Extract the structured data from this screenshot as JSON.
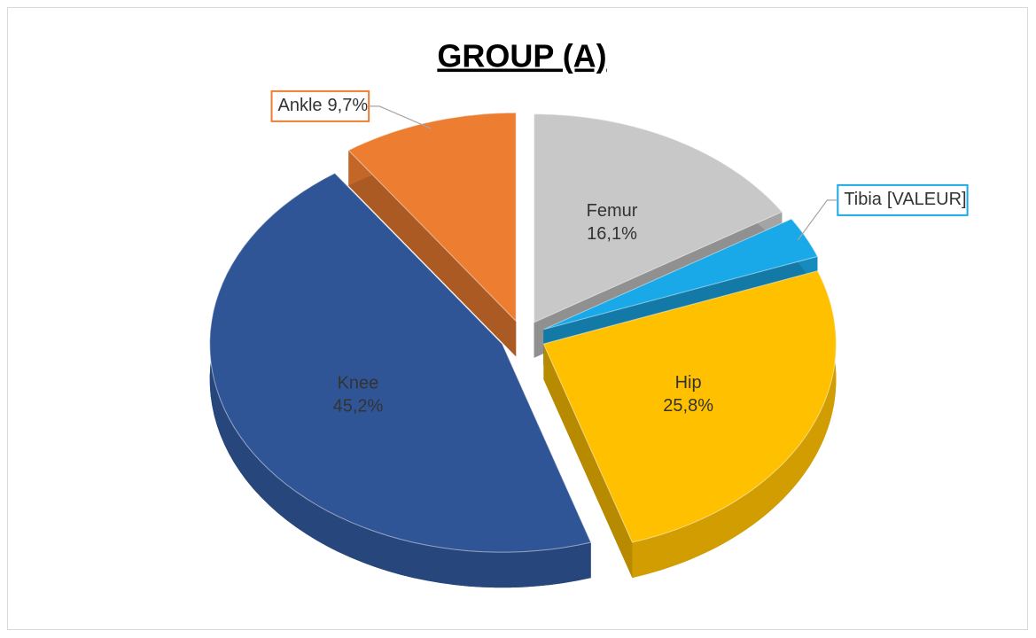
{
  "chart_data": {
    "type": "pie",
    "title": "GROUP (A)",
    "categories": [
      "Femur",
      "Tibia",
      "Hip",
      "Knee",
      "Ankle"
    ],
    "values": [
      16.1,
      3.2,
      25.8,
      45.2,
      9.7
    ],
    "value_labels": [
      "16,1%",
      "[VALEUR]",
      "25,8%",
      "45,2%",
      "9,7%"
    ],
    "colors": [
      "#c8c8c8",
      "#1aa9e8",
      "#ffc000",
      "#2f5597",
      "#ed7d31"
    ]
  }
}
